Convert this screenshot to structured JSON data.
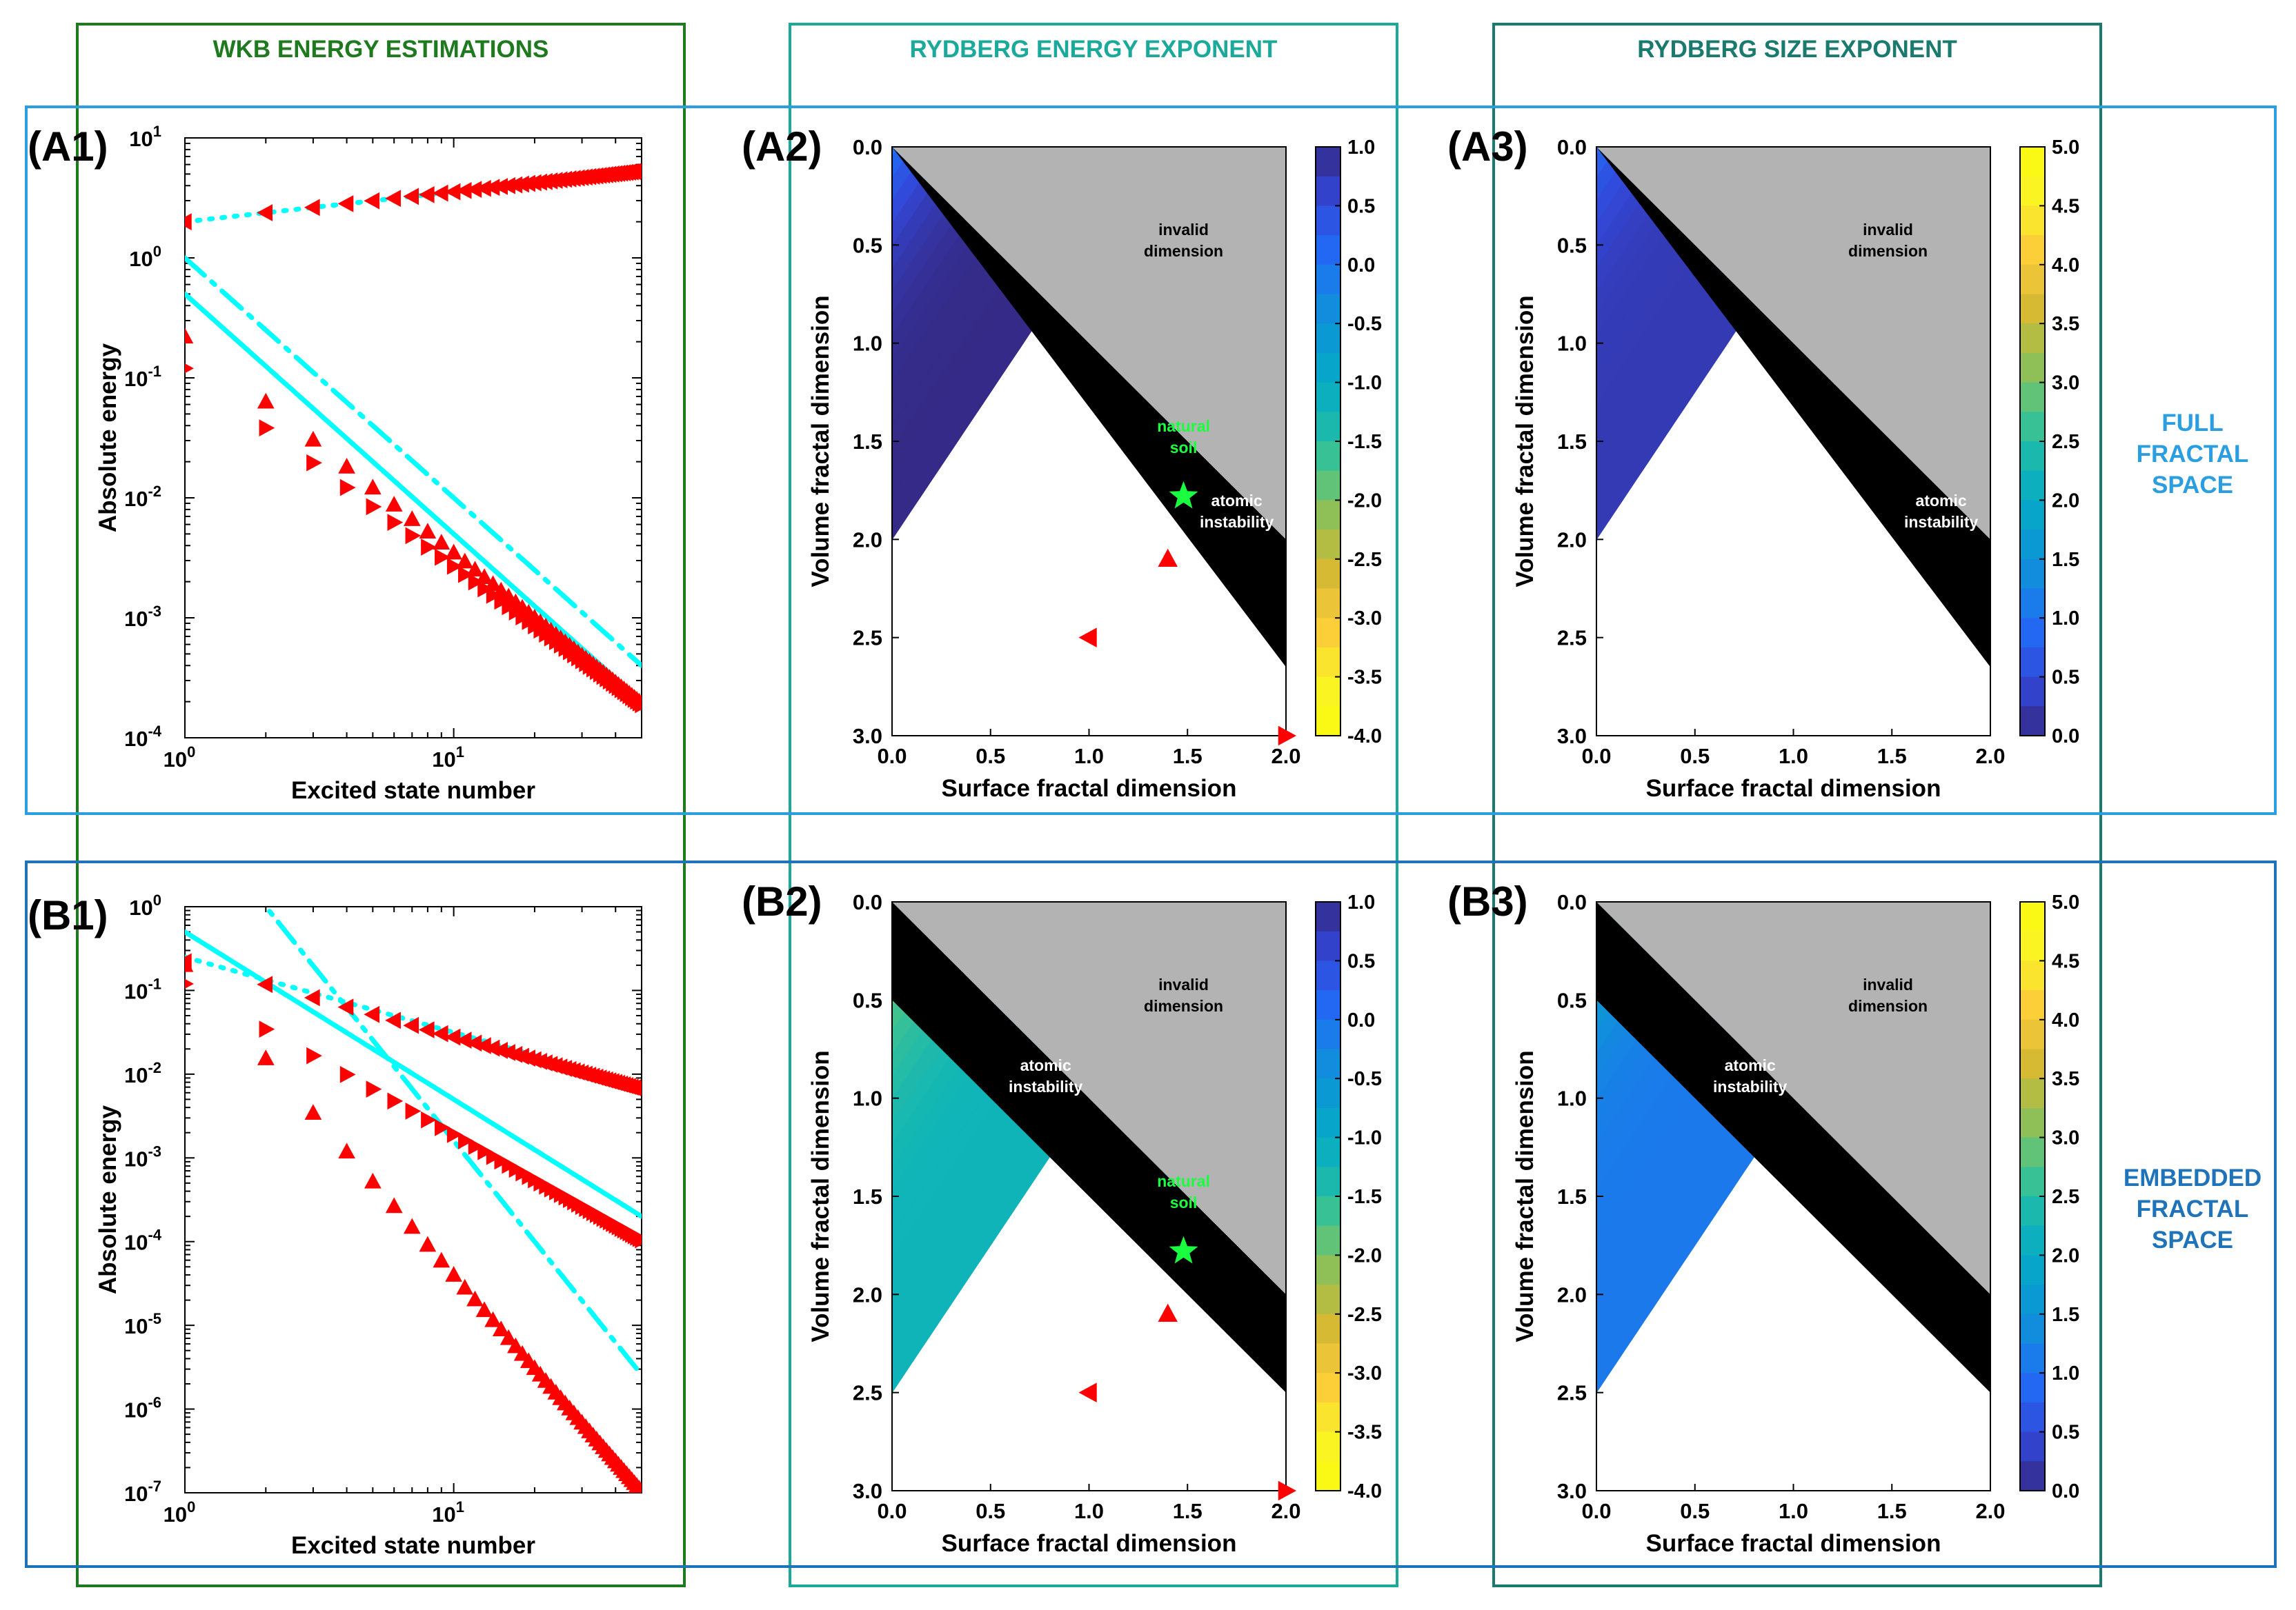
{
  "figure": {
    "column_headers": [
      "WKB ENERGY ESTIMATIONS",
      "RYDBERG ENERGY EXPONENT",
      "RYDBERG SIZE EXPONENT"
    ],
    "row_labels": [
      [
        "FULL",
        "FRACTAL",
        "SPACE"
      ],
      [
        "EMBEDDED",
        "FRACTAL",
        "SPACE"
      ]
    ],
    "colors": {
      "wkb_box": "#1f7a1f",
      "energy_box": "#1aa99b",
      "size_box": "#1a7a6e",
      "full_row": "#2a9ee0",
      "embedded_row": "#1f73b8",
      "markers": "#ff0000",
      "fits": "#00ffff",
      "star": "#19ff40",
      "invalid": "#b3b3b3",
      "unstable": "#000000"
    }
  },
  "chart_data": [
    {
      "id": "A1",
      "label": "(A1)",
      "type": "scatter",
      "scale": "log-log",
      "xlabel": "Excited state number",
      "ylabel": "Absolute energy",
      "xlim": [
        1,
        50
      ],
      "ylim_exp": [
        -4,
        1
      ],
      "xticks": [
        "10^0",
        "10^1"
      ],
      "yticks": [
        "10^-4",
        "10^-3",
        "10^-2",
        "10^-1",
        "10^0",
        "10^1"
      ],
      "series": [
        {
          "name": "left-triangle markers",
          "marker": "tri-left",
          "coef": 2.0,
          "power": 0.25
        },
        {
          "name": "up-triangle markers",
          "marker": "tri-up",
          "coef": 0.22,
          "power": -1.8,
          "from": 1
        },
        {
          "name": "right-triangle markers",
          "marker": "tri-right",
          "coef": 0.12,
          "power": -1.65,
          "from": 1
        },
        {
          "name": "dotted fit",
          "line": "dotted",
          "coef": 2.0,
          "power": 0.25
        },
        {
          "name": "dash-dot fit",
          "line": "dashdot",
          "coef": 1.0,
          "power": -2.0
        },
        {
          "name": "solid fit",
          "line": "solid",
          "coef": 0.5,
          "power": -2.0
        }
      ]
    },
    {
      "id": "B1",
      "label": "(B1)",
      "type": "scatter",
      "scale": "log-log",
      "xlabel": "Excited state number",
      "ylabel": "Absolute energy",
      "xlim": [
        1,
        50
      ],
      "ylim_exp": [
        -7,
        0
      ],
      "xticks": [
        "10^0",
        "10^1"
      ],
      "yticks": [
        "10^-7",
        "10^-6",
        "10^-5",
        "10^-4",
        "10^-3",
        "10^-2",
        "10^-1",
        "10^0"
      ],
      "series": [
        {
          "name": "left-triangle markers",
          "marker": "tri-left",
          "coef": 0.22,
          "power": -0.9
        },
        {
          "name": "right-triangle markers",
          "marker": "tri-right",
          "coef": 0.12,
          "power": -1.8
        },
        {
          "name": "up-triangle markers",
          "marker": "tri-up",
          "coef": 0.2,
          "power": -3.7
        },
        {
          "name": "dotted fit",
          "line": "dotted",
          "coef": 0.25,
          "power": -0.9
        },
        {
          "name": "solid fit",
          "line": "solid",
          "coef": 0.5,
          "power": -2.0
        },
        {
          "name": "dash-dot fit",
          "line": "dashdot",
          "coef": 16,
          "power": -4.0
        }
      ]
    },
    {
      "id": "A2",
      "label": "(A2)",
      "type": "heatmap",
      "xlabel": "Surface fractal dimension",
      "ylabel": "Volume fractal dimension",
      "xlim": [
        0,
        2
      ],
      "ylim": [
        0,
        3
      ],
      "xticks": [
        "0.0",
        "0.5",
        "1.0",
        "1.5",
        "2.0"
      ],
      "yticks": [
        "0.0",
        "0.5",
        "1.0",
        "1.5",
        "2.0",
        "2.5",
        "3.0"
      ],
      "colorbar": {
        "min": -4,
        "max": 1,
        "reverse": true,
        "ticks": [
          "1.0",
          "0.5",
          "0.0",
          "-0.5",
          "-1.0",
          "-1.5",
          "-2.0",
          "-2.5",
          "-3.0",
          "-3.5",
          "-4.0"
        ]
      },
      "boundary_invalid": 1.5,
      "boundary_unstable": 1.0,
      "annotations": {
        "invalid": [
          "invalid",
          "dimension"
        ],
        "unstable": [
          "atomic",
          "instability"
        ],
        "soil": [
          "natural",
          "soil"
        ]
      },
      "points": [
        {
          "marker": "star",
          "x": 1.48,
          "y": 1.78
        },
        {
          "marker": "tri-up",
          "x": 1.4,
          "y": 2.1
        },
        {
          "marker": "tri-left",
          "x": 1.0,
          "y": 2.5
        },
        {
          "marker": "tri-right",
          "x": 2.0,
          "y": 3.0
        }
      ]
    },
    {
      "id": "A3",
      "label": "(A3)",
      "type": "heatmap",
      "xlabel": "Surface fractal dimension",
      "ylabel": "Volume fractal dimension",
      "xlim": [
        0,
        2
      ],
      "ylim": [
        0,
        3
      ],
      "xticks": [
        "0.0",
        "0.5",
        "1.0",
        "1.5",
        "2.0"
      ],
      "yticks": [
        "0.0",
        "0.5",
        "1.0",
        "1.5",
        "2.0",
        "2.5",
        "3.0"
      ],
      "colorbar": {
        "min": 0,
        "max": 5,
        "reverse": false,
        "ticks": [
          "5.0",
          "4.5",
          "4.0",
          "3.5",
          "3.0",
          "2.5",
          "2.0",
          "1.5",
          "1.0",
          "0.5",
          "0.0"
        ]
      },
      "boundary_invalid": 1.5,
      "boundary_unstable": 1.0,
      "annotations": {
        "invalid": [
          "invalid",
          "dimension"
        ],
        "unstable": [
          "atomic",
          "instability"
        ]
      }
    },
    {
      "id": "B2",
      "label": "(B2)",
      "type": "heatmap",
      "xlabel": "Surface fractal dimension",
      "ylabel": "Volume fractal dimension",
      "xlim": [
        0,
        2
      ],
      "ylim": [
        0,
        3
      ],
      "xticks": [
        "0.0",
        "0.5",
        "1.0",
        "1.5",
        "2.0"
      ],
      "yticks": [
        "0.0",
        "0.5",
        "1.0",
        "1.5",
        "2.0",
        "2.5",
        "3.0"
      ],
      "colorbar": {
        "min": -4,
        "max": 1,
        "reverse": true,
        "ticks": [
          "1.0",
          "0.5",
          "0.0",
          "-0.5",
          "-1.0",
          "-1.5",
          "-2.0",
          "-2.5",
          "-3.0",
          "-3.5",
          "-4.0"
        ]
      },
      "boundary_invalid": 1.5,
      "boundary_unstable": 0.5,
      "annotations": {
        "invalid": [
          "invalid",
          "dimension"
        ],
        "unstable": [
          "atomic",
          "instability"
        ],
        "soil": [
          "natural",
          "soil"
        ]
      },
      "points": [
        {
          "marker": "star",
          "x": 1.48,
          "y": 1.78
        },
        {
          "marker": "tri-up",
          "x": 1.4,
          "y": 2.1
        },
        {
          "marker": "tri-left",
          "x": 1.0,
          "y": 2.5
        },
        {
          "marker": "tri-right",
          "x": 2.0,
          "y": 3.0
        }
      ]
    },
    {
      "id": "B3",
      "label": "(B3)",
      "type": "heatmap",
      "xlabel": "Surface fractal dimension",
      "ylabel": "Volume fractal dimension",
      "xlim": [
        0,
        2
      ],
      "ylim": [
        0,
        3
      ],
      "xticks": [
        "0.0",
        "0.5",
        "1.0",
        "1.5",
        "2.0"
      ],
      "yticks": [
        "0.0",
        "0.5",
        "1.0",
        "1.5",
        "2.0",
        "2.5",
        "3.0"
      ],
      "colorbar": {
        "min": 0,
        "max": 5,
        "reverse": false,
        "ticks": [
          "5.0",
          "4.5",
          "4.0",
          "3.5",
          "3.0",
          "2.5",
          "2.0",
          "1.5",
          "1.0",
          "0.5",
          "0.0"
        ]
      },
      "boundary_invalid": 1.5,
      "boundary_unstable": 0.5,
      "annotations": {
        "invalid": [
          "invalid",
          "dimension"
        ],
        "unstable": [
          "atomic",
          "instability"
        ]
      }
    }
  ]
}
